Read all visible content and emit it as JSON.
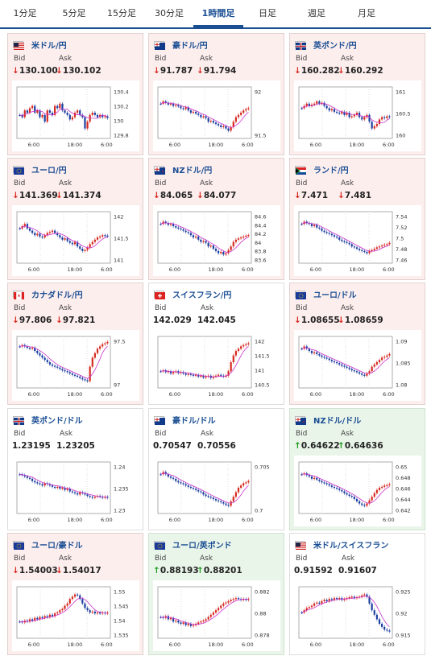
{
  "tabs": [
    {
      "label": "1分足",
      "active": false
    },
    {
      "label": "5分足",
      "active": false
    },
    {
      "label": "15分足",
      "active": false
    },
    {
      "label": "30分足",
      "active": false
    },
    {
      "label": "1時間足",
      "active": true
    },
    {
      "label": "日足",
      "active": false
    },
    {
      "label": "週足",
      "active": false
    },
    {
      "label": "月足",
      "active": false
    }
  ],
  "labels": {
    "bid": "Bid",
    "ask": "Ask"
  },
  "colors": {
    "down": "#d6281e",
    "up": "#1a9a1a",
    "accent": "#1b4f93",
    "ma": "#cc33cc",
    "candle_up": "#d6281e",
    "candle_down": "#1b3fa0"
  },
  "cards": [
    {
      "name": "米ドル/円",
      "flag": "us-flag",
      "dir": "down",
      "bid": "130.100",
      "ask": "130.102",
      "yticks": [
        "130.4",
        "130.2",
        "130",
        "129.8"
      ],
      "xticks": [
        "6:00",
        "18:00",
        "6:00"
      ],
      "trend": [
        0.55,
        0.6,
        0.45,
        0.5,
        0.4,
        0.35,
        0.5,
        0.45,
        0.6,
        0.55,
        0.7,
        0.45,
        0.5,
        0.55,
        0.35,
        0.4,
        0.3,
        0.45,
        0.5,
        0.55,
        0.65,
        0.6,
        0.5,
        0.45,
        0.55,
        0.6,
        0.85,
        0.7,
        0.55,
        0.5,
        0.55,
        0.6,
        0.55,
        0.6,
        0.58,
        0.62
      ]
    },
    {
      "name": "豪ドル/円",
      "flag": "au-flag",
      "dir": "down",
      "bid": "91.787",
      "ask": "91.794",
      "yticks": [
        "92",
        "91.5"
      ],
      "xticks": [
        "6:00",
        "18:00",
        "6:00"
      ],
      "trend": [
        0.3,
        0.25,
        0.28,
        0.32,
        0.3,
        0.35,
        0.33,
        0.36,
        0.4,
        0.42,
        0.38,
        0.45,
        0.5,
        0.48,
        0.52,
        0.55,
        0.6,
        0.58,
        0.62,
        0.7,
        0.68,
        0.72,
        0.75,
        0.78,
        0.82,
        0.8,
        0.85,
        0.9,
        0.82,
        0.7,
        0.6,
        0.55,
        0.5,
        0.45,
        0.42,
        0.4
      ]
    },
    {
      "name": "英ポンド/円",
      "flag": "gb-flag",
      "dir": "down",
      "bid": "160.282",
      "ask": "160.292",
      "yticks": [
        "161",
        "160.5",
        "160"
      ],
      "xticks": [
        "6:00",
        "18:00",
        "6:00"
      ],
      "trend": [
        0.4,
        0.35,
        0.3,
        0.35,
        0.32,
        0.3,
        0.25,
        0.3,
        0.28,
        0.35,
        0.4,
        0.45,
        0.42,
        0.48,
        0.5,
        0.52,
        0.48,
        0.55,
        0.5,
        0.6,
        0.58,
        0.55,
        0.5,
        0.6,
        0.65,
        0.6,
        0.55,
        0.7,
        0.85,
        0.8,
        0.75,
        0.65,
        0.6,
        0.62,
        0.58,
        0.6
      ]
    },
    {
      "name": "ユーロ/円",
      "flag": "eu-flag",
      "dir": "down",
      "bid": "141.369",
      "ask": "141.374",
      "yticks": [
        "142",
        "141.5",
        "141"
      ],
      "xticks": [
        "6:00",
        "18:00",
        "6:00"
      ],
      "trend": [
        0.3,
        0.25,
        0.2,
        0.3,
        0.35,
        0.4,
        0.45,
        0.42,
        0.48,
        0.5,
        0.45,
        0.4,
        0.38,
        0.35,
        0.4,
        0.45,
        0.5,
        0.55,
        0.52,
        0.58,
        0.62,
        0.65,
        0.6,
        0.7,
        0.75,
        0.8,
        0.78,
        0.72,
        0.65,
        0.6,
        0.55,
        0.5,
        0.48,
        0.45,
        0.46,
        0.48
      ]
    },
    {
      "name": "NZドル/円",
      "flag": "nz-flag",
      "dir": "down",
      "bid": "84.065",
      "ask": "84.077",
      "yticks": [
        "84.6",
        "84.4",
        "84.2",
        "84",
        "83.8",
        "83.6"
      ],
      "xticks": [
        "6:00",
        "18:00",
        "6:00"
      ],
      "trend": [
        0.2,
        0.15,
        0.18,
        0.22,
        0.2,
        0.25,
        0.28,
        0.3,
        0.32,
        0.35,
        0.38,
        0.4,
        0.45,
        0.5,
        0.48,
        0.55,
        0.6,
        0.58,
        0.62,
        0.7,
        0.68,
        0.75,
        0.8,
        0.85,
        0.82,
        0.88,
        0.85,
        0.78,
        0.7,
        0.6,
        0.55,
        0.52,
        0.5,
        0.48,
        0.46,
        0.45
      ]
    },
    {
      "name": "ランド/円",
      "flag": "za-flag",
      "dir": "down",
      "bid": "7.471",
      "ask": "7.481",
      "yticks": [
        "7.54",
        "7.52",
        "7.5",
        "7.48",
        "7.46"
      ],
      "xticks": [
        "6:00",
        "18:00",
        "6:00"
      ],
      "trend": [
        0.2,
        0.15,
        0.18,
        0.2,
        0.25,
        0.22,
        0.28,
        0.3,
        0.35,
        0.38,
        0.4,
        0.42,
        0.45,
        0.48,
        0.5,
        0.55,
        0.58,
        0.6,
        0.62,
        0.65,
        0.7,
        0.72,
        0.75,
        0.78,
        0.8,
        0.82,
        0.85,
        0.8,
        0.78,
        0.75,
        0.72,
        0.7,
        0.68,
        0.66,
        0.65,
        0.62
      ]
    },
    {
      "name": "カナダドル/円",
      "flag": "ca-flag",
      "dir": "down",
      "bid": "97.806",
      "ask": "97.821",
      "yticks": [
        "97.5",
        "97"
      ],
      "xticks": [
        "6:00",
        "18:00",
        "6:00"
      ],
      "trend": [
        0.15,
        0.12,
        0.15,
        0.18,
        0.2,
        0.18,
        0.25,
        0.3,
        0.35,
        0.4,
        0.45,
        0.5,
        0.55,
        0.58,
        0.6,
        0.62,
        0.65,
        0.68,
        0.7,
        0.72,
        0.75,
        0.78,
        0.8,
        0.82,
        0.85,
        0.88,
        0.9,
        0.92,
        0.6,
        0.4,
        0.3,
        0.2,
        0.15,
        0.1,
        0.08,
        0.05
      ]
    },
    {
      "name": "スイスフラン/円",
      "flag": "ch-flag",
      "dir": "flat",
      "bid": "142.029",
      "ask": "142.045",
      "yticks": [
        "142",
        "141.5",
        "141",
        "140.5"
      ],
      "xticks": [
        "6:00",
        "18:00",
        "6:00"
      ],
      "trend": [
        0.7,
        0.68,
        0.72,
        0.7,
        0.75,
        0.72,
        0.7,
        0.74,
        0.72,
        0.75,
        0.78,
        0.76,
        0.78,
        0.8,
        0.78,
        0.82,
        0.8,
        0.84,
        0.82,
        0.8,
        0.85,
        0.82,
        0.8,
        0.78,
        0.8,
        0.82,
        0.8,
        0.7,
        0.5,
        0.35,
        0.25,
        0.2,
        0.15,
        0.12,
        0.1,
        0.08
      ]
    },
    {
      "name": "ユーロ/ドル",
      "flag": "eu-flag",
      "dir": "down",
      "bid": "1.08655",
      "ask": "1.08659",
      "yticks": [
        "1.09",
        "1.085",
        "1.08"
      ],
      "xticks": [
        "6:00",
        "18:00",
        "6:00"
      ],
      "trend": [
        0.2,
        0.15,
        0.2,
        0.25,
        0.3,
        0.28,
        0.32,
        0.35,
        0.38,
        0.4,
        0.42,
        0.45,
        0.48,
        0.5,
        0.52,
        0.55,
        0.58,
        0.6,
        0.62,
        0.65,
        0.68,
        0.7,
        0.72,
        0.75,
        0.78,
        0.8,
        0.75,
        0.7,
        0.6,
        0.55,
        0.5,
        0.45,
        0.4,
        0.38,
        0.35,
        0.32
      ]
    },
    {
      "name": "英ポンド/ドル",
      "flag": "gb-flag",
      "dir": "flat",
      "bid": "1.23195",
      "ask": "1.23205",
      "yticks": [
        "1.24",
        "1.235",
        "1.23"
      ],
      "xticks": [
        "6:00",
        "18:00",
        "6:00"
      ],
      "trend": [
        0.2,
        0.22,
        0.25,
        0.28,
        0.3,
        0.35,
        0.38,
        0.4,
        0.42,
        0.45,
        0.4,
        0.42,
        0.45,
        0.48,
        0.5,
        0.48,
        0.52,
        0.5,
        0.55,
        0.52,
        0.58,
        0.6,
        0.62,
        0.65,
        0.6,
        0.62,
        0.65,
        0.68,
        0.7,
        0.72,
        0.7,
        0.68,
        0.7,
        0.72,
        0.7,
        0.72
      ]
    },
    {
      "name": "豪ドル/ドル",
      "flag": "au-flag",
      "dir": "flat",
      "bid": "0.70547",
      "ask": "0.70556",
      "yticks": [
        "0.705",
        "0.7"
      ],
      "xticks": [
        "6:00",
        "18:00",
        "6:00"
      ],
      "trend": [
        0.2,
        0.15,
        0.2,
        0.25,
        0.28,
        0.3,
        0.35,
        0.38,
        0.4,
        0.42,
        0.45,
        0.48,
        0.5,
        0.52,
        0.55,
        0.58,
        0.6,
        0.65,
        0.68,
        0.7,
        0.72,
        0.75,
        0.78,
        0.8,
        0.82,
        0.85,
        0.88,
        0.9,
        0.8,
        0.7,
        0.6,
        0.5,
        0.45,
        0.4,
        0.38,
        0.35
      ]
    },
    {
      "name": "NZドル/ドル",
      "flag": "nz-flag",
      "dir": "up",
      "bid": "0.64622",
      "ask": "0.64636",
      "yticks": [
        "0.65",
        "0.648",
        "0.646",
        "0.644",
        "0.642"
      ],
      "xticks": [
        "6:00",
        "18:00",
        "6:00"
      ],
      "trend": [
        0.2,
        0.18,
        0.22,
        0.25,
        0.3,
        0.28,
        0.32,
        0.35,
        0.38,
        0.4,
        0.42,
        0.45,
        0.48,
        0.5,
        0.52,
        0.55,
        0.58,
        0.62,
        0.65,
        0.68,
        0.7,
        0.75,
        0.8,
        0.85,
        0.88,
        0.9,
        0.85,
        0.78,
        0.7,
        0.62,
        0.55,
        0.5,
        0.48,
        0.45,
        0.44,
        0.42
      ]
    },
    {
      "name": "ユーロ/豪ドル",
      "flag": "eu-flag",
      "dir": "down",
      "bid": "1.54003",
      "ask": "1.54017",
      "yticks": [
        "1.55",
        "1.545",
        "1.54",
        "1.535"
      ],
      "xticks": [
        "6:00",
        "18:00",
        "6:00"
      ],
      "trend": [
        0.7,
        0.72,
        0.68,
        0.7,
        0.65,
        0.68,
        0.62,
        0.65,
        0.6,
        0.62,
        0.58,
        0.6,
        0.55,
        0.58,
        0.52,
        0.5,
        0.45,
        0.42,
        0.35,
        0.3,
        0.2,
        0.15,
        0.1,
        0.12,
        0.2,
        0.3,
        0.4,
        0.45,
        0.5,
        0.48,
        0.52,
        0.5,
        0.52,
        0.5,
        0.52,
        0.5
      ]
    },
    {
      "name": "ユーロ/英ポンド",
      "flag": "eu-flag",
      "dir": "up",
      "bid": "0.88193",
      "ask": "0.88201",
      "yticks": [
        "0.882",
        "0.88",
        "0.878"
      ],
      "xticks": [
        "6:00",
        "18:00",
        "6:00"
      ],
      "trend": [
        0.6,
        0.62,
        0.58,
        0.65,
        0.62,
        0.7,
        0.68,
        0.72,
        0.75,
        0.72,
        0.78,
        0.75,
        0.8,
        0.78,
        0.75,
        0.72,
        0.7,
        0.68,
        0.65,
        0.6,
        0.55,
        0.5,
        0.45,
        0.4,
        0.35,
        0.3,
        0.28,
        0.25,
        0.22,
        0.2,
        0.18,
        0.2,
        0.22,
        0.2,
        0.22,
        0.2
      ]
    },
    {
      "name": "米ドル/スイスフラン",
      "flag": "us-flag",
      "dir": "flat",
      "bid": "0.91592",
      "ask": "0.91607",
      "yticks": [
        "0.925",
        "0.92",
        "0.915"
      ],
      "xticks": [
        "6:00",
        "18:00",
        "6:00"
      ],
      "trend": [
        0.5,
        0.45,
        0.4,
        0.38,
        0.35,
        0.3,
        0.28,
        0.3,
        0.25,
        0.22,
        0.25,
        0.2,
        0.22,
        0.18,
        0.2,
        0.18,
        0.22,
        0.2,
        0.18,
        0.16,
        0.15,
        0.18,
        0.16,
        0.15,
        0.12,
        0.1,
        0.15,
        0.3,
        0.45,
        0.55,
        0.65,
        0.75,
        0.82,
        0.88,
        0.9,
        0.92
      ]
    }
  ]
}
